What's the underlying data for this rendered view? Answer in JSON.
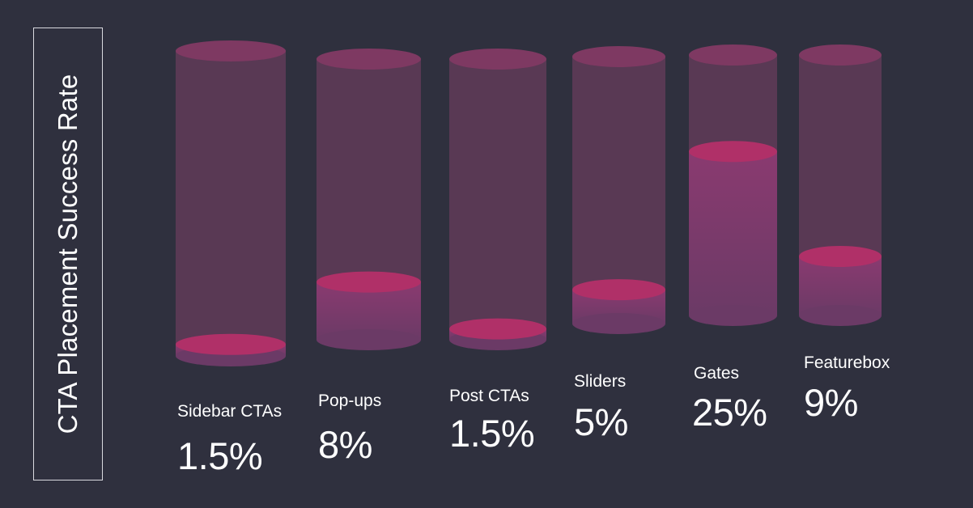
{
  "title": "CTA Placement Success Rate",
  "colors": {
    "background": "#2f303e",
    "tube_body": "#5c3a55",
    "tube_top": "#7e3962",
    "liquid_side": "#7a3a6a",
    "liquid_top": "#b03068",
    "text": "#ffffff"
  },
  "chart_data": {
    "type": "bar",
    "title": "CTA Placement Success Rate",
    "categories": [
      "Sidebar CTAs",
      "Pop-ups",
      "Post CTAs",
      "Sliders",
      "Gates",
      "Featurebox"
    ],
    "values": [
      1.5,
      8,
      1.5,
      5,
      25,
      9
    ],
    "value_labels": [
      "1.5%",
      "8%",
      "1.5%",
      "5%",
      "25%",
      "9%"
    ],
    "unit": "%",
    "ylim": [
      0,
      37
    ],
    "grid": false
  }
}
